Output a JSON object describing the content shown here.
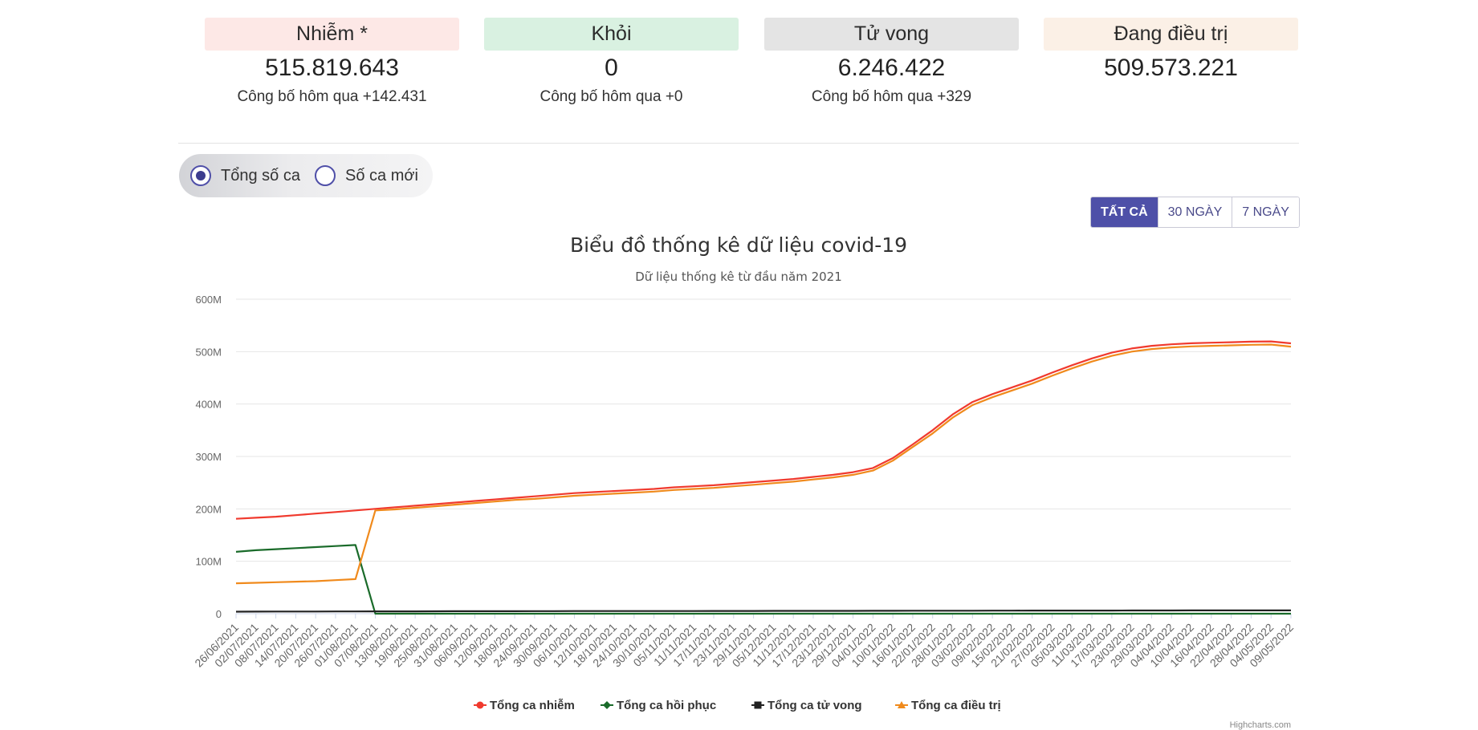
{
  "stats": [
    {
      "label": "Nhiễm *",
      "value": "515.819.643",
      "sub": "Công bố hôm qua +142.431",
      "bg": "#fde8e6"
    },
    {
      "label": "Khỏi",
      "value": "0",
      "sub": "Công bố hôm qua +0",
      "bg": "#d9f1e1"
    },
    {
      "label": "Tử vong",
      "value": "6.246.422",
      "sub": "Công bố hôm qua +329",
      "bg": "#e4e4e4"
    },
    {
      "label": "Đang điều trị",
      "value": "509.573.221",
      "sub": "",
      "bg": "#fbf0e6"
    }
  ],
  "radios": [
    {
      "label": "Tổng số ca",
      "checked": true
    },
    {
      "label": "Số ca mới",
      "checked": false
    }
  ],
  "range_buttons": [
    {
      "label": "TẤT CẢ",
      "active": true
    },
    {
      "label": "30 NGÀY",
      "active": false
    },
    {
      "label": "7 NGÀY",
      "active": false
    }
  ],
  "credit": "Highcharts.com",
  "chart_data": {
    "type": "line",
    "title": "Biểu đồ thống kê dữ liệu covid-19",
    "subtitle": "Dữ liệu thống kê từ đầu năm 2021",
    "xlabel": "",
    "ylabel": "",
    "ylim": [
      0,
      600000000
    ],
    "yticks": [
      "0",
      "100M",
      "200M",
      "300M",
      "400M",
      "500M",
      "600M"
    ],
    "grid": true,
    "legend_position": "bottom-center",
    "categories": [
      "26/06/2021",
      "02/07/2021",
      "08/07/2021",
      "14/07/2021",
      "20/07/2021",
      "26/07/2021",
      "01/08/2021",
      "07/08/2021",
      "13/08/2021",
      "19/08/2021",
      "25/08/2021",
      "31/08/2021",
      "06/09/2021",
      "12/09/2021",
      "18/09/2021",
      "24/09/2021",
      "30/09/2021",
      "06/10/2021",
      "12/10/2021",
      "18/10/2021",
      "24/10/2021",
      "30/10/2021",
      "05/11/2021",
      "11/11/2021",
      "17/11/2021",
      "23/11/2021",
      "29/11/2021",
      "05/12/2021",
      "11/12/2021",
      "17/12/2021",
      "23/12/2021",
      "29/12/2021",
      "04/01/2022",
      "10/01/2022",
      "16/01/2022",
      "22/01/2022",
      "28/01/2022",
      "03/02/2022",
      "09/02/2022",
      "15/02/2022",
      "21/02/2022",
      "27/02/2022",
      "05/03/2022",
      "11/03/2022",
      "17/03/2022",
      "23/03/2022",
      "29/03/2022",
      "04/04/2022",
      "10/04/2022",
      "16/04/2022",
      "22/04/2022",
      "28/04/2022",
      "04/05/2022",
      "09/05/2022"
    ],
    "series": [
      {
        "name": "Tổng ca nhiễm",
        "color": "#f03a2e",
        "marker": "circle",
        "values": [
          181,
          183,
          185,
          188,
          191,
          194,
          197,
          200,
          203,
          206,
          209,
          212,
          215,
          218,
          221,
          224,
          227,
          230,
          232,
          234,
          236,
          238,
          241,
          243,
          245,
          248,
          251,
          254,
          257,
          261,
          265,
          270,
          278,
          297,
          323,
          350,
          380,
          404,
          419,
          432,
          445,
          460,
          474,
          487,
          498,
          506,
          511,
          514,
          516,
          517,
          518,
          519,
          519.5,
          515.8
        ]
      },
      {
        "name": "Tổng ca hồi phục",
        "color": "#1a6b2a",
        "marker": "diamond",
        "values": [
          118,
          121,
          123,
          125,
          127,
          129,
          131,
          0,
          0,
          0,
          0,
          0,
          0,
          0,
          0,
          0,
          0,
          0,
          0,
          0,
          0,
          0,
          0,
          0,
          0,
          0,
          0,
          0,
          0,
          0,
          0,
          0,
          0,
          0,
          0,
          0,
          0,
          0,
          0,
          0,
          0,
          0,
          0,
          0,
          0,
          0,
          0,
          0,
          0,
          0,
          0,
          0,
          0,
          0
        ]
      },
      {
        "name": "Tổng ca tử vong",
        "color": "#222222",
        "marker": "square",
        "values": [
          3.9,
          4.0,
          4.1,
          4.1,
          4.2,
          4.3,
          4.3,
          4.4,
          4.5,
          4.5,
          4.6,
          4.7,
          4.7,
          4.8,
          4.8,
          4.9,
          4.9,
          5.0,
          5.0,
          5.0,
          5.0,
          5.1,
          5.1,
          5.1,
          5.2,
          5.2,
          5.2,
          5.3,
          5.3,
          5.3,
          5.4,
          5.4,
          5.5,
          5.5,
          5.6,
          5.6,
          5.7,
          5.7,
          5.8,
          5.8,
          5.9,
          5.9,
          6.0,
          6.0,
          6.0,
          6.1,
          6.1,
          6.1,
          6.2,
          6.2,
          6.2,
          6.2,
          6.2,
          6.2
        ]
      },
      {
        "name": "Tổng ca điều trị",
        "color": "#f08a1c",
        "marker": "triangle",
        "values": [
          58,
          59,
          60,
          61,
          62,
          64,
          66,
          197,
          199,
          202,
          205,
          208,
          211,
          214,
          217,
          219,
          222,
          225,
          227,
          229,
          231,
          233,
          236,
          238,
          240,
          243,
          246,
          249,
          252,
          256,
          260,
          265,
          273,
          292,
          318,
          344,
          374,
          398,
          413,
          426,
          439,
          454,
          468,
          481,
          492,
          500,
          505,
          508,
          510,
          511,
          512,
          513,
          513.5,
          509.6
        ]
      }
    ]
  }
}
